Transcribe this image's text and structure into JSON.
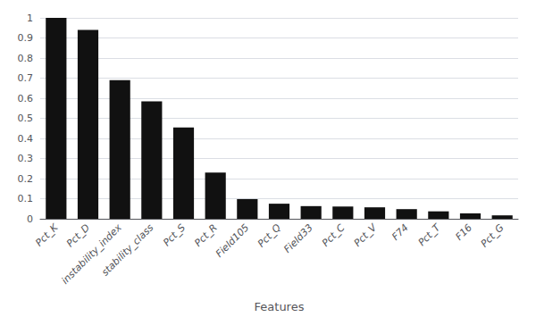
{
  "chart_data": {
    "type": "bar",
    "categories": [
      "Pct_K",
      "Pct_D",
      "instability_index",
      "stability_class",
      "Pct_S",
      "Pct_R",
      "Field105",
      "Pct_Q",
      "Field33",
      "Pct_C",
      "Pct_V",
      "F74",
      "Pct_T",
      "F16",
      "Pct_G"
    ],
    "values": [
      1.0,
      0.94,
      0.69,
      0.585,
      0.455,
      0.23,
      0.098,
      0.075,
      0.063,
      0.061,
      0.057,
      0.048,
      0.037,
      0.027,
      0.017
    ],
    "color": "#111111",
    "xlabel": "Features",
    "ylim": [
      0,
      1.0
    ],
    "yticks": [
      0,
      0.1,
      0.2,
      0.3,
      0.4,
      0.5,
      0.6,
      0.7,
      0.8,
      0.9,
      1
    ],
    "grid": true
  }
}
